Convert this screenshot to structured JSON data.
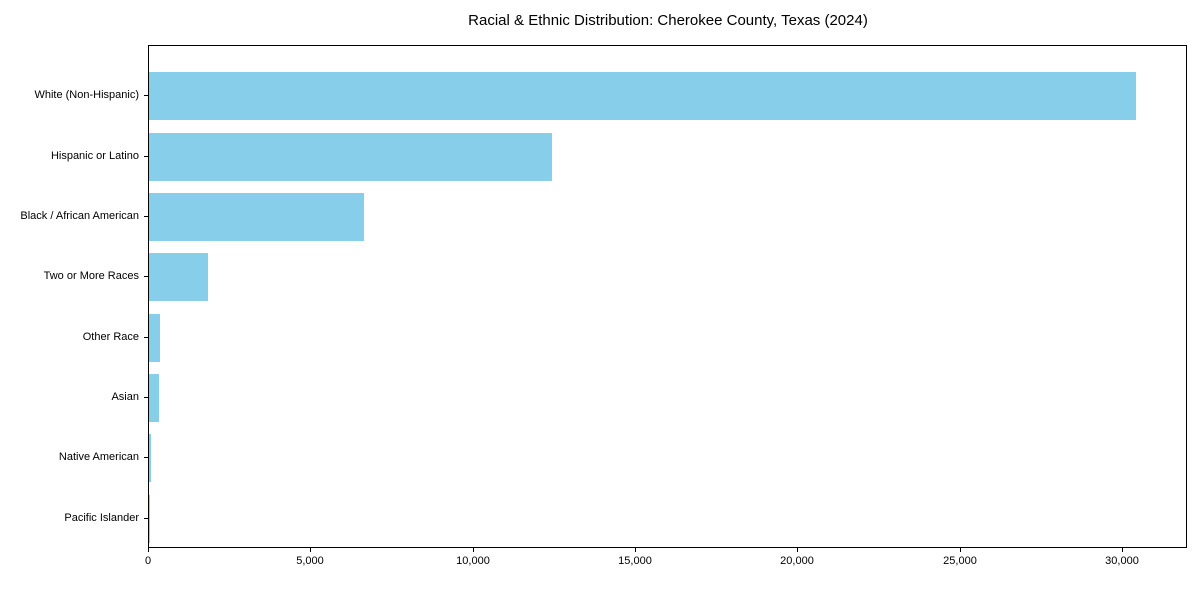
{
  "title": "Racial & Ethnic Distribution: Cherokee County, Texas (2024)",
  "chart_data": {
    "type": "bar",
    "orientation": "horizontal",
    "title": "Racial & Ethnic Distribution: Cherokee County, Texas (2024)",
    "categories": [
      "White (Non-Hispanic)",
      "Hispanic or Latino",
      "Black / African American",
      "Two or More Races",
      "Other Race",
      "Asian",
      "Native American",
      "Pacific Islander"
    ],
    "values": [
      30460,
      12430,
      6630,
      1830,
      340,
      300,
      50,
      20
    ],
    "xlabel": "",
    "ylabel": "",
    "xlim": [
      0,
      32000
    ],
    "xticks": [
      0,
      5000,
      10000,
      15000,
      20000,
      25000,
      30000
    ],
    "xtick_labels": [
      "0",
      "5,000",
      "10,000",
      "15,000",
      "20,000",
      "25,000",
      "30,000"
    ],
    "bar_color": "#87CEEB",
    "grid": false,
    "legend": null,
    "background": "#ffffff",
    "spine_color": "#000000",
    "text_color": "#000000"
  }
}
